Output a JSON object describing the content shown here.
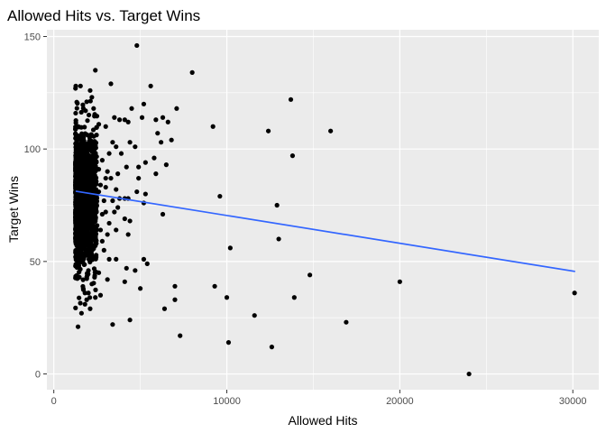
{
  "chart_data": {
    "type": "scatter",
    "title": "Allowed Hits vs. Target Wins",
    "xlabel": "Allowed Hits",
    "ylabel": "Target Wins",
    "xlim": [
      -400,
      31500
    ],
    "ylim": [
      -7,
      153
    ],
    "x_ticks": [
      0,
      10000,
      20000,
      30000
    ],
    "x_tick_labels": [
      "0",
      "10000",
      "20000",
      "30000"
    ],
    "y_ticks": [
      0,
      50,
      100,
      150
    ],
    "y_tick_labels": [
      "0",
      "50",
      "100",
      "150"
    ],
    "grid": true,
    "legend": "none",
    "colors": {
      "panel_background": "#ebebeb",
      "grid_major": "#ffffff",
      "points": "#000000",
      "trend_line": "#3366ff"
    },
    "trend_line": {
      "type": "linear",
      "x": [
        1300,
        30100
      ],
      "y": [
        81.2,
        45.6
      ]
    },
    "points": [
      [
        4800,
        146
      ],
      [
        8000,
        134
      ],
      [
        2400,
        135
      ],
      [
        3300,
        129
      ],
      [
        5600,
        128
      ],
      [
        2100,
        126
      ],
      [
        2200,
        123
      ],
      [
        1900,
        121
      ],
      [
        2300,
        118
      ],
      [
        4500,
        118
      ],
      [
        7100,
        118
      ],
      [
        5200,
        120
      ],
      [
        13700,
        122
      ],
      [
        3500,
        114
      ],
      [
        3800,
        113
      ],
      [
        4100,
        113
      ],
      [
        4300,
        112
      ],
      [
        5100,
        114
      ],
      [
        5900,
        113
      ],
      [
        6300,
        114
      ],
      [
        6600,
        112
      ],
      [
        2600,
        111
      ],
      [
        3000,
        110
      ],
      [
        9200,
        110
      ],
      [
        6000,
        107
      ],
      [
        12400,
        108
      ],
      [
        16000,
        108
      ],
      [
        6800,
        104
      ],
      [
        3400,
        103
      ],
      [
        4400,
        103
      ],
      [
        3600,
        101
      ],
      [
        6200,
        103
      ],
      [
        3200,
        98
      ],
      [
        3900,
        98
      ],
      [
        4700,
        101
      ],
      [
        5800,
        96
      ],
      [
        6500,
        93
      ],
      [
        13800,
        97
      ],
      [
        5300,
        94
      ],
      [
        2800,
        95
      ],
      [
        4200,
        92
      ],
      [
        2600,
        91
      ],
      [
        3100,
        90
      ],
      [
        3700,
        89
      ],
      [
        4900,
        92
      ],
      [
        5900,
        89
      ],
      [
        3000,
        87
      ],
      [
        3300,
        87
      ],
      [
        2400,
        86
      ],
      [
        4900,
        87
      ],
      [
        2700,
        84
      ],
      [
        3000,
        83
      ],
      [
        3600,
        82
      ],
      [
        2600,
        81
      ],
      [
        4800,
        81
      ],
      [
        5300,
        80
      ],
      [
        9600,
        79
      ],
      [
        3800,
        78
      ],
      [
        4100,
        78
      ],
      [
        4300,
        78
      ],
      [
        2300,
        77
      ],
      [
        2900,
        77
      ],
      [
        3400,
        77
      ],
      [
        5200,
        76
      ],
      [
        3700,
        74
      ],
      [
        12900,
        75
      ],
      [
        2400,
        73
      ],
      [
        3000,
        72
      ],
      [
        3500,
        72
      ],
      [
        2800,
        71
      ],
      [
        6300,
        71
      ],
      [
        4100,
        69
      ],
      [
        2300,
        68
      ],
      [
        3200,
        67
      ],
      [
        4400,
        68
      ],
      [
        2500,
        66
      ],
      [
        2700,
        64
      ],
      [
        3600,
        64
      ],
      [
        2300,
        62
      ],
      [
        3100,
        62
      ],
      [
        4300,
        62
      ],
      [
        10200,
        56
      ],
      [
        2100,
        60
      ],
      [
        2800,
        59
      ],
      [
        13000,
        60
      ],
      [
        2400,
        57
      ],
      [
        2100,
        56
      ],
      [
        2900,
        55
      ],
      [
        2200,
        52
      ],
      [
        3200,
        51
      ],
      [
        3600,
        51
      ],
      [
        5200,
        51
      ],
      [
        5400,
        49
      ],
      [
        4200,
        47
      ],
      [
        4700,
        46
      ],
      [
        2000,
        46
      ],
      [
        2600,
        45
      ],
      [
        14800,
        44
      ],
      [
        1900,
        43
      ],
      [
        3100,
        42
      ],
      [
        4100,
        41
      ],
      [
        20000,
        41
      ],
      [
        2200,
        40
      ],
      [
        5000,
        38
      ],
      [
        7000,
        39
      ],
      [
        9300,
        39
      ],
      [
        1700,
        38
      ],
      [
        1800,
        36
      ],
      [
        2000,
        36
      ],
      [
        1900,
        33
      ],
      [
        2400,
        34
      ],
      [
        2700,
        35
      ],
      [
        7000,
        33
      ],
      [
        10000,
        34
      ],
      [
        13900,
        34
      ],
      [
        30100,
        36
      ],
      [
        1800,
        31
      ],
      [
        2100,
        29
      ],
      [
        6400,
        29
      ],
      [
        1600,
        27
      ],
      [
        11600,
        26
      ],
      [
        4400,
        24
      ],
      [
        3400,
        22
      ],
      [
        16900,
        23
      ],
      [
        1400,
        21
      ],
      [
        7300,
        17
      ],
      [
        10100,
        14
      ],
      [
        12600,
        12
      ],
      [
        24000,
        0
      ]
    ],
    "dense_cluster": {
      "x_range": [
        1250,
        2500
      ],
      "y_range": [
        20,
        128
      ],
      "y_center": 78,
      "y_spread": 15,
      "count": 1400
    }
  }
}
